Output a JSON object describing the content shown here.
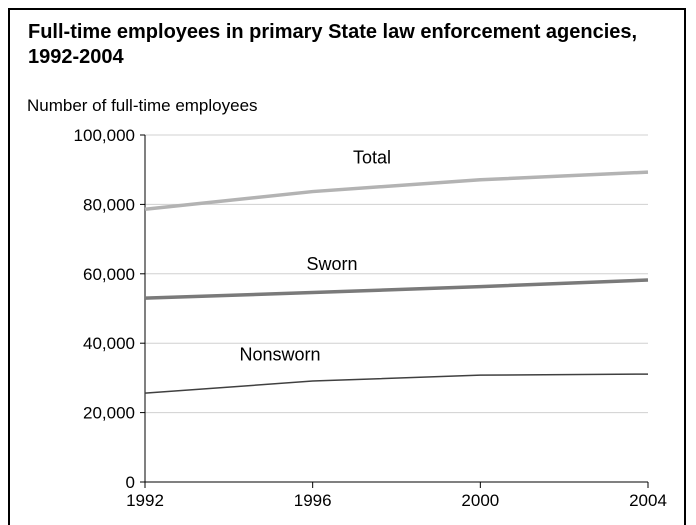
{
  "chart_data": {
    "type": "line",
    "title": "Full-time employees in primary State law enforcement agencies, 1992-2004",
    "ylabel": "Number of full-time employees",
    "xlabel": "",
    "x": [
      1992,
      1996,
      2000,
      2004
    ],
    "x_tick_labels": [
      "1992",
      "1996",
      "2000",
      "2004"
    ],
    "y_ticks": [
      0,
      20000,
      40000,
      60000,
      80000,
      100000
    ],
    "y_tick_labels": [
      "0",
      "20,000",
      "40,000",
      "60,000",
      "80,000",
      "100,000"
    ],
    "ylim": [
      0,
      100000
    ],
    "grid": "horizontal",
    "series": [
      {
        "name": "Total",
        "values": [
          78600,
          83700,
          87100,
          89300
        ],
        "color": "#b3b3b3",
        "weight": "thick"
      },
      {
        "name": "Sworn",
        "values": [
          53000,
          54600,
          56300,
          58200
        ],
        "color": "#7a7a7a",
        "weight": "thick"
      },
      {
        "name": "Nonsworn",
        "values": [
          25600,
          29100,
          30800,
          31100
        ],
        "color": "#404040",
        "weight": "thin"
      }
    ]
  }
}
